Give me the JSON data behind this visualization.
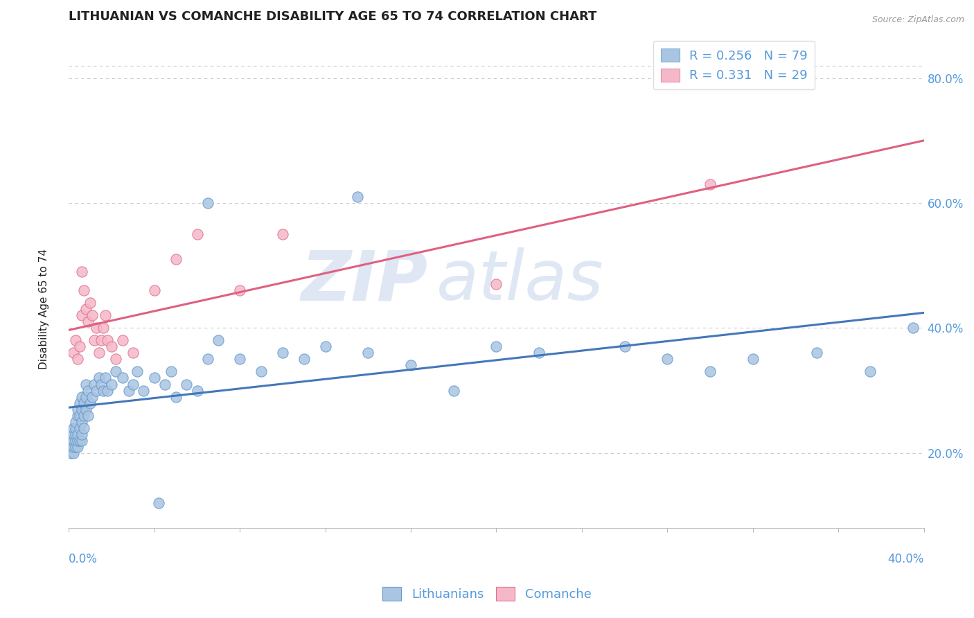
{
  "title": "LITHUANIAN VS COMANCHE DISABILITY AGE 65 TO 74 CORRELATION CHART",
  "source_text": "Source: ZipAtlas.com",
  "ylabel": "Disability Age 65 to 74",
  "yticks_labels": [
    "20.0%",
    "40.0%",
    "60.0%",
    "80.0%"
  ],
  "ytick_vals": [
    0.2,
    0.4,
    0.6,
    0.8
  ],
  "xlim": [
    0.0,
    0.4
  ],
  "ylim": [
    0.08,
    0.87
  ],
  "watermark_zip": "ZIP",
  "watermark_atlas": "atlas",
  "legend_entries": [
    {
      "label": "R = 0.256   N = 79",
      "color": "#aac5e2",
      "edgecolor": "#7aafd4"
    },
    {
      "label": "R = 0.331   N = 29",
      "color": "#f5b8c8",
      "edgecolor": "#e890a8"
    }
  ],
  "series": [
    {
      "name": "Lithuanians",
      "color": "#aac5e2",
      "edgecolor": "#6699cc",
      "line_color": "#4477bb",
      "x": [
        0.001,
        0.001,
        0.001,
        0.002,
        0.002,
        0.002,
        0.002,
        0.002,
        0.003,
        0.003,
        0.003,
        0.003,
        0.003,
        0.004,
        0.004,
        0.004,
        0.004,
        0.004,
        0.005,
        0.005,
        0.005,
        0.005,
        0.006,
        0.006,
        0.006,
        0.006,
        0.006,
        0.007,
        0.007,
        0.007,
        0.008,
        0.008,
        0.008,
        0.009,
        0.009,
        0.01,
        0.011,
        0.012,
        0.013,
        0.014,
        0.015,
        0.016,
        0.017,
        0.018,
        0.02,
        0.022,
        0.025,
        0.028,
        0.03,
        0.032,
        0.035,
        0.04,
        0.045,
        0.048,
        0.05,
        0.055,
        0.06,
        0.065,
        0.07,
        0.08,
        0.09,
        0.1,
        0.11,
        0.12,
        0.14,
        0.16,
        0.18,
        0.2,
        0.22,
        0.26,
        0.28,
        0.3,
        0.32,
        0.35,
        0.375,
        0.395,
        0.135,
        0.065,
        0.042
      ],
      "y": [
        0.21,
        0.2,
        0.22,
        0.2,
        0.21,
        0.22,
        0.23,
        0.24,
        0.21,
        0.22,
        0.23,
        0.24,
        0.25,
        0.21,
        0.22,
        0.23,
        0.26,
        0.27,
        0.22,
        0.24,
        0.26,
        0.28,
        0.22,
        0.23,
        0.25,
        0.27,
        0.29,
        0.24,
        0.26,
        0.28,
        0.27,
        0.29,
        0.31,
        0.26,
        0.3,
        0.28,
        0.29,
        0.31,
        0.3,
        0.32,
        0.31,
        0.3,
        0.32,
        0.3,
        0.31,
        0.33,
        0.32,
        0.3,
        0.31,
        0.33,
        0.3,
        0.32,
        0.31,
        0.33,
        0.29,
        0.31,
        0.3,
        0.35,
        0.38,
        0.35,
        0.33,
        0.36,
        0.35,
        0.37,
        0.36,
        0.34,
        0.3,
        0.37,
        0.36,
        0.37,
        0.35,
        0.33,
        0.35,
        0.36,
        0.33,
        0.4,
        0.61,
        0.6,
        0.12
      ]
    },
    {
      "name": "Comanche",
      "color": "#f5b8c8",
      "edgecolor": "#e07090",
      "line_color": "#e06080",
      "x": [
        0.002,
        0.003,
        0.004,
        0.005,
        0.006,
        0.006,
        0.007,
        0.008,
        0.009,
        0.01,
        0.011,
        0.012,
        0.013,
        0.014,
        0.015,
        0.016,
        0.017,
        0.018,
        0.02,
        0.022,
        0.025,
        0.03,
        0.04,
        0.05,
        0.06,
        0.08,
        0.1,
        0.2,
        0.3
      ],
      "y": [
        0.36,
        0.38,
        0.35,
        0.37,
        0.49,
        0.42,
        0.46,
        0.43,
        0.41,
        0.44,
        0.42,
        0.38,
        0.4,
        0.36,
        0.38,
        0.4,
        0.42,
        0.38,
        0.37,
        0.35,
        0.38,
        0.36,
        0.46,
        0.51,
        0.55,
        0.46,
        0.55,
        0.47,
        0.63
      ]
    }
  ],
  "title_fontsize": 13,
  "axis_label_fontsize": 11,
  "tick_fontsize": 12,
  "legend_fontsize": 13,
  "title_color": "#222222",
  "axis_color": "#5599dd",
  "tick_color": "#5599dd",
  "background_color": "#ffffff",
  "grid_color": "#cccccc",
  "watermark_color": "#c8d8ec",
  "watermark_alpha": 0.6
}
